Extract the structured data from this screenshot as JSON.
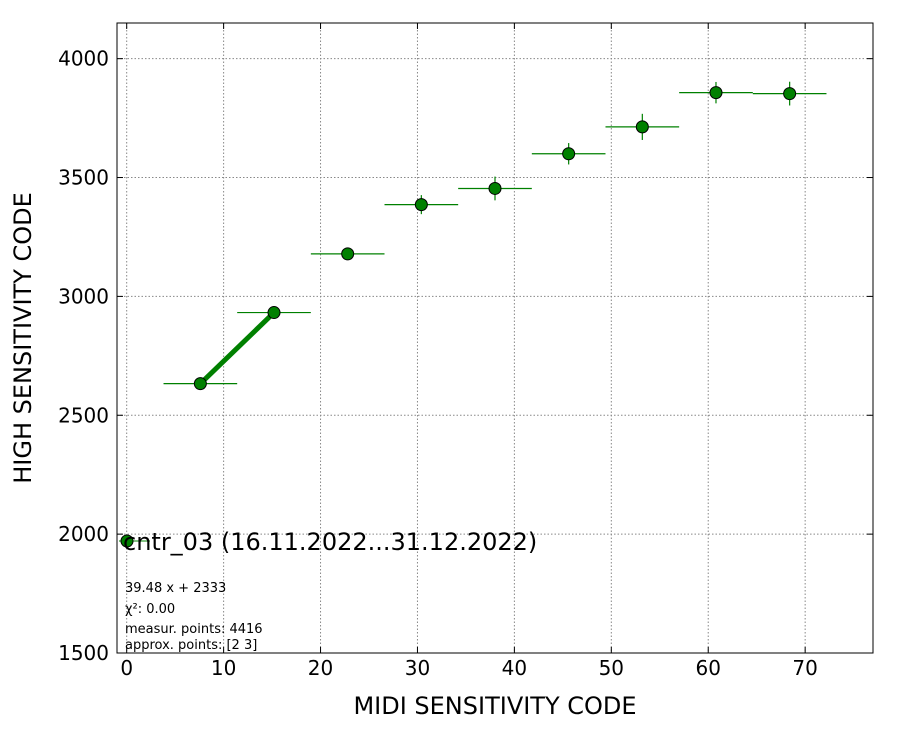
{
  "chart_data": {
    "type": "scatter",
    "xlabel": "MIDI SENSITIVITY CODE",
    "ylabel": "HIGH SENSITIVITY CODE",
    "xlim": [
      -1,
      77
    ],
    "ylim": [
      1500,
      4150
    ],
    "xticks": [
      0,
      10,
      20,
      30,
      40,
      50,
      60,
      70
    ],
    "yticks": [
      1500,
      2000,
      2500,
      3000,
      3500,
      4000
    ],
    "grid": true,
    "marker_color": "#008000",
    "series": [
      {
        "name": "cntr_03 (16.11.2022...31.12.2022)",
        "points": [
          {
            "x": 7.6,
            "y": 2633,
            "xerr": 3.8,
            "yerr": 10
          },
          {
            "x": 15.2,
            "y": 2932,
            "xerr": 3.8,
            "yerr": 20
          },
          {
            "x": 22.8,
            "y": 3179,
            "xerr": 3.8,
            "yerr": 25
          },
          {
            "x": 30.4,
            "y": 3386,
            "xerr": 3.8,
            "yerr": 40
          },
          {
            "x": 38.0,
            "y": 3454,
            "xerr": 3.8,
            "yerr": 50
          },
          {
            "x": 45.6,
            "y": 3600,
            "xerr": 3.8,
            "yerr": 45
          },
          {
            "x": 53.2,
            "y": 3713,
            "xerr": 3.8,
            "yerr": 55
          },
          {
            "x": 60.8,
            "y": 3857,
            "xerr": 3.8,
            "yerr": 45
          },
          {
            "x": 68.4,
            "y": 3853,
            "xerr": 3.8,
            "yerr": 50
          }
        ]
      }
    ],
    "fit": {
      "slope": 39.48,
      "intercept": 2333,
      "x_range": [
        7.6,
        15.2
      ],
      "color": "#008000"
    },
    "legend": {
      "location": "lower-left",
      "label": "cntr_03 (16.11.2022...31.12.2022)"
    },
    "annotations": [
      "39.48 x + 2333",
      "χ²: 0.00",
      "measur. points: 4416",
      "approx. points: [2 3]"
    ]
  }
}
